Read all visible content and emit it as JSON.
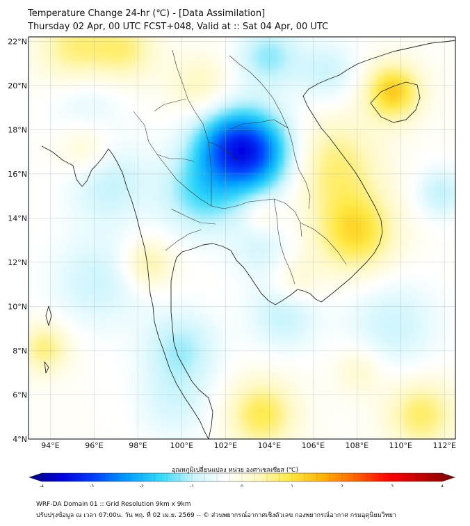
{
  "header": {
    "title_line1": "Temperature Change 24-hr (℃) - [Data Assimilation]",
    "title_line2": "Thursday 02 Apr, 00 UTC FCST+048, Valid at :: Sat 04 Apr, 00 UTC"
  },
  "map": {
    "lon_range": [
      93,
      112.5
    ],
    "lat_range": [
      4,
      22.2
    ],
    "lon_ticks": [
      "94°E",
      "96°E",
      "98°E",
      "100°E",
      "102°E",
      "104°E",
      "106°E",
      "108°E",
      "110°E",
      "112°E"
    ],
    "lat_ticks": [
      "4°N",
      "6°N",
      "8°N",
      "10°N",
      "12°N",
      "14°N",
      "16°N",
      "18°N",
      "20°N",
      "22°N"
    ],
    "anomalies": [
      {
        "lon": 103.2,
        "lat": 16.8,
        "value": -2.2,
        "spread": 1.3
      },
      {
        "lon": 101.8,
        "lat": 17.3,
        "value": -1.3,
        "spread": 1.2
      },
      {
        "lon": 100.8,
        "lat": 15.0,
        "value": -1.1,
        "spread": 1.3
      },
      {
        "lon": 103.8,
        "lat": 21.2,
        "value": -0.9,
        "spread": 1.0
      },
      {
        "lon": 99.8,
        "lat": 8.0,
        "value": -0.8,
        "spread": 1.2
      },
      {
        "lon": 104.5,
        "lat": 9.5,
        "value": -0.7,
        "spread": 1.1
      },
      {
        "lon": 96.5,
        "lat": 15.5,
        "value": -0.7,
        "spread": 1.3
      },
      {
        "lon": 96.0,
        "lat": 11.0,
        "value": -0.6,
        "spread": 1.5
      },
      {
        "lon": 106.5,
        "lat": 20.5,
        "value": -0.6,
        "spread": 1.0
      },
      {
        "lon": 109.5,
        "lat": 9.0,
        "value": -0.6,
        "spread": 1.5
      },
      {
        "lon": 111.7,
        "lat": 15.0,
        "value": -0.7,
        "spread": 0.8
      },
      {
        "lon": 103.5,
        "lat": 12.5,
        "value": -0.5,
        "spread": 1.0
      },
      {
        "lon": 99.5,
        "lat": 5.5,
        "value": -0.5,
        "spread": 1.2
      },
      {
        "lon": 95.5,
        "lat": 19.0,
        "value": -0.4,
        "spread": 1.2
      },
      {
        "lon": 106.8,
        "lat": 16.3,
        "value": 0.9,
        "spread": 1.5
      },
      {
        "lon": 107.8,
        "lat": 13.2,
        "value": 1.3,
        "spread": 1.3
      },
      {
        "lon": 109.5,
        "lat": 19.6,
        "value": 1.5,
        "spread": 0.9
      },
      {
        "lon": 95.0,
        "lat": 21.6,
        "value": 0.9,
        "spread": 1.2
      },
      {
        "lon": 97.3,
        "lat": 21.5,
        "value": 0.8,
        "spread": 1.0
      },
      {
        "lon": 100.7,
        "lat": 19.8,
        "value": 0.6,
        "spread": 1.0
      },
      {
        "lon": 103.5,
        "lat": 5.0,
        "value": 1.1,
        "spread": 1.1
      },
      {
        "lon": 110.8,
        "lat": 5.0,
        "value": 1.0,
        "spread": 1.1
      },
      {
        "lon": 98.3,
        "lat": 11.8,
        "value": 0.8,
        "spread": 0.8
      },
      {
        "lon": 93.6,
        "lat": 8.0,
        "value": 0.9,
        "spread": 0.8
      },
      {
        "lon": 95.5,
        "lat": 17.0,
        "value": 0.6,
        "spread": 0.9
      },
      {
        "lon": 105.0,
        "lat": 11.0,
        "value": 0.5,
        "spread": 0.8
      },
      {
        "lon": 103.5,
        "lat": 14.0,
        "value": 0.5,
        "spread": 0.6
      },
      {
        "lon": 108.0,
        "lat": 7.0,
        "value": 0.5,
        "spread": 0.8
      }
    ]
  },
  "colorbar": {
    "label": "อุณหภูมิเปลี่ยนแปลง หน่วย องศาเซลเซียส (℃)",
    "min": -4,
    "max": 4,
    "ticks": [
      "-4",
      "-3",
      "-2",
      "-1",
      "0",
      "1",
      "2",
      "3",
      "4"
    ],
    "colors": [
      "#00007f",
      "#0000e0",
      "#0040ff",
      "#00a0ff",
      "#30d8f8",
      "#c8f4fc",
      "#ffffff",
      "#fff8c0",
      "#ffe840",
      "#ffb000",
      "#ff6000",
      "#ff0000",
      "#c00000",
      "#7f0000"
    ]
  },
  "footer": {
    "line1": "WRF-DA Domain 01 :: Grid Resolution 9km x 9km",
    "line2": "ปรับปรุงข้อมูล ณ เวลา 07:00น. วัน พฤ. ที่ 02 เม.ย. 2569 -- © ส่วนพยากรณ์อากาศเชิงตัวเลข กองพยากรณ์อากาศ กรมอุตุนิยมวิทยา"
  }
}
